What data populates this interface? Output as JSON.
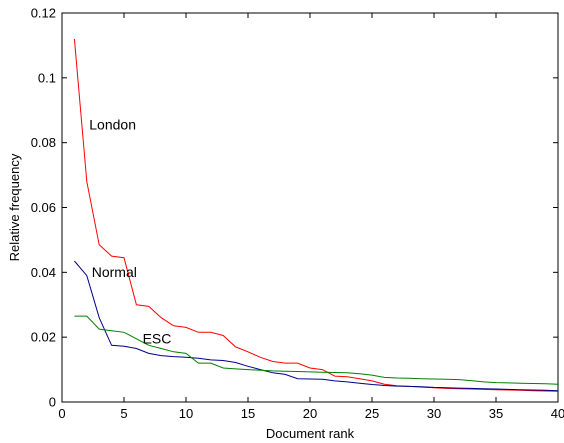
{
  "chart_data": {
    "type": "line",
    "title": "",
    "xlabel": "Document rank",
    "ylabel": "Relative frequency",
    "xlim": [
      0,
      40
    ],
    "ylim": [
      0,
      0.12
    ],
    "xticks": [
      0,
      5,
      10,
      15,
      20,
      25,
      30,
      35,
      40
    ],
    "yticks": [
      0,
      0.02,
      0.04,
      0.06,
      0.08,
      0.1,
      0.12
    ],
    "xtick_labels": [
      "0",
      "5",
      "10",
      "15",
      "20",
      "25",
      "30",
      "35",
      "40"
    ],
    "ytick_labels": [
      "0",
      "0.02",
      "0.04",
      "0.06",
      "0.08",
      "0.1",
      "0.12"
    ],
    "grid": false,
    "legend": "none",
    "annotations": [
      {
        "text": "London",
        "x": 2.2,
        "y": 0.084
      },
      {
        "text": "Normal",
        "x": 2.4,
        "y": 0.0385
      },
      {
        "text": "ESC",
        "x": 6.5,
        "y": 0.018
      }
    ],
    "series": [
      {
        "name": "London",
        "color": "#ff0000",
        "x": [
          1,
          2,
          3,
          4,
          5,
          6,
          7,
          8,
          9,
          10,
          11,
          12,
          13,
          14,
          15,
          16,
          17,
          18,
          19,
          20,
          21,
          22,
          23,
          24,
          25,
          26,
          27,
          28,
          29,
          30,
          31,
          32,
          33,
          34,
          35,
          36,
          37,
          38,
          39,
          40
        ],
        "y": [
          0.112,
          0.068,
          0.0485,
          0.045,
          0.0445,
          0.03,
          0.0295,
          0.026,
          0.0235,
          0.023,
          0.0215,
          0.0215,
          0.0205,
          0.017,
          0.0155,
          0.0138,
          0.0125,
          0.012,
          0.012,
          0.0105,
          0.01,
          0.008,
          0.0078,
          0.0072,
          0.0065,
          0.0055,
          0.005,
          0.0048,
          0.0046,
          0.0044,
          0.0042,
          0.0041,
          0.004,
          0.0039,
          0.0038,
          0.0037,
          0.0036,
          0.0035,
          0.0034,
          0.0033
        ]
      },
      {
        "name": "Normal",
        "color": "#00008b",
        "x": [
          1,
          2,
          3,
          4,
          5,
          6,
          7,
          8,
          9,
          10,
          11,
          12,
          13,
          14,
          15,
          16,
          17,
          18,
          19,
          20,
          21,
          22,
          23,
          24,
          25,
          26,
          27,
          28,
          29,
          30,
          31,
          32,
          33,
          34,
          35,
          36,
          37,
          38,
          39,
          40
        ],
        "y": [
          0.0435,
          0.039,
          0.026,
          0.0175,
          0.0172,
          0.0165,
          0.015,
          0.0143,
          0.014,
          0.0138,
          0.0135,
          0.013,
          0.0128,
          0.0122,
          0.011,
          0.01,
          0.009,
          0.0085,
          0.0072,
          0.0071,
          0.007,
          0.0065,
          0.0062,
          0.0058,
          0.0054,
          0.0051,
          0.0049,
          0.0048,
          0.0047,
          0.0045,
          0.0044,
          0.0043,
          0.0042,
          0.0041,
          0.004,
          0.0039,
          0.0038,
          0.0037,
          0.0036,
          0.0035
        ]
      },
      {
        "name": "ESC",
        "color": "#008000",
        "x": [
          1,
          2,
          3,
          4,
          5,
          6,
          7,
          8,
          9,
          10,
          11,
          12,
          13,
          14,
          15,
          16,
          17,
          18,
          19,
          20,
          21,
          22,
          23,
          24,
          25,
          26,
          27,
          28,
          29,
          30,
          31,
          32,
          33,
          34,
          35,
          36,
          37,
          38,
          39,
          40
        ],
        "y": [
          0.0265,
          0.0265,
          0.0225,
          0.022,
          0.0215,
          0.0195,
          0.0175,
          0.0165,
          0.0155,
          0.015,
          0.012,
          0.012,
          0.0105,
          0.0102,
          0.01,
          0.0098,
          0.0096,
          0.0095,
          0.0094,
          0.0093,
          0.0092,
          0.0091,
          0.009,
          0.0087,
          0.0083,
          0.0076,
          0.0074,
          0.0073,
          0.0072,
          0.0071,
          0.007,
          0.0069,
          0.0066,
          0.0062,
          0.006,
          0.0059,
          0.0058,
          0.0057,
          0.0056,
          0.0055
        ]
      }
    ]
  }
}
